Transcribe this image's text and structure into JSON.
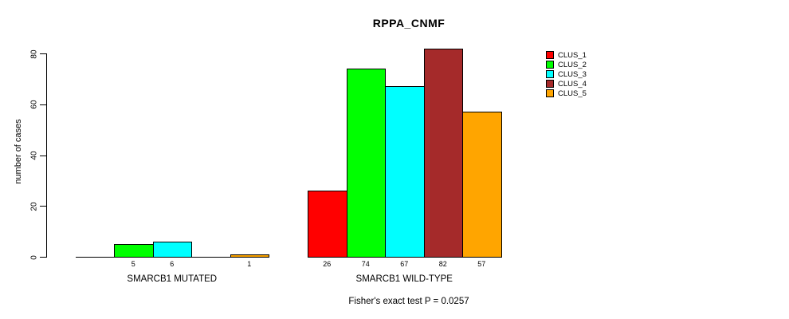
{
  "chart_data": {
    "type": "bar",
    "title": "RPPA_CNMF",
    "ylabel": "number of cases",
    "xlabel": "",
    "ylim": [
      0,
      80
    ],
    "yticks": [
      0,
      20,
      40,
      60,
      80
    ],
    "grid": false,
    "legend_position": "right",
    "categories": [
      "SMARCB1 MUTATED",
      "SMARCB1 WILD-TYPE"
    ],
    "series": [
      {
        "name": "CLUS_1",
        "color": "#ff0000",
        "values": [
          0,
          26
        ]
      },
      {
        "name": "CLUS_2",
        "color": "#00ff00",
        "values": [
          5,
          74
        ]
      },
      {
        "name": "CLUS_3",
        "color": "#00ffff",
        "values": [
          6,
          67
        ]
      },
      {
        "name": "CLUS_4",
        "color": "#a52a2a",
        "values": [
          0,
          82
        ]
      },
      {
        "name": "CLUS_5",
        "color": "#ffa500",
        "values": [
          1,
          57
        ]
      }
    ],
    "bar_value_labels_shown_only_if_nonzero": true,
    "footer": "Fisher's exact test P = 0.0257",
    "axis_color": "#000000",
    "text_color": "#000000",
    "background_color": "#ffffff"
  }
}
